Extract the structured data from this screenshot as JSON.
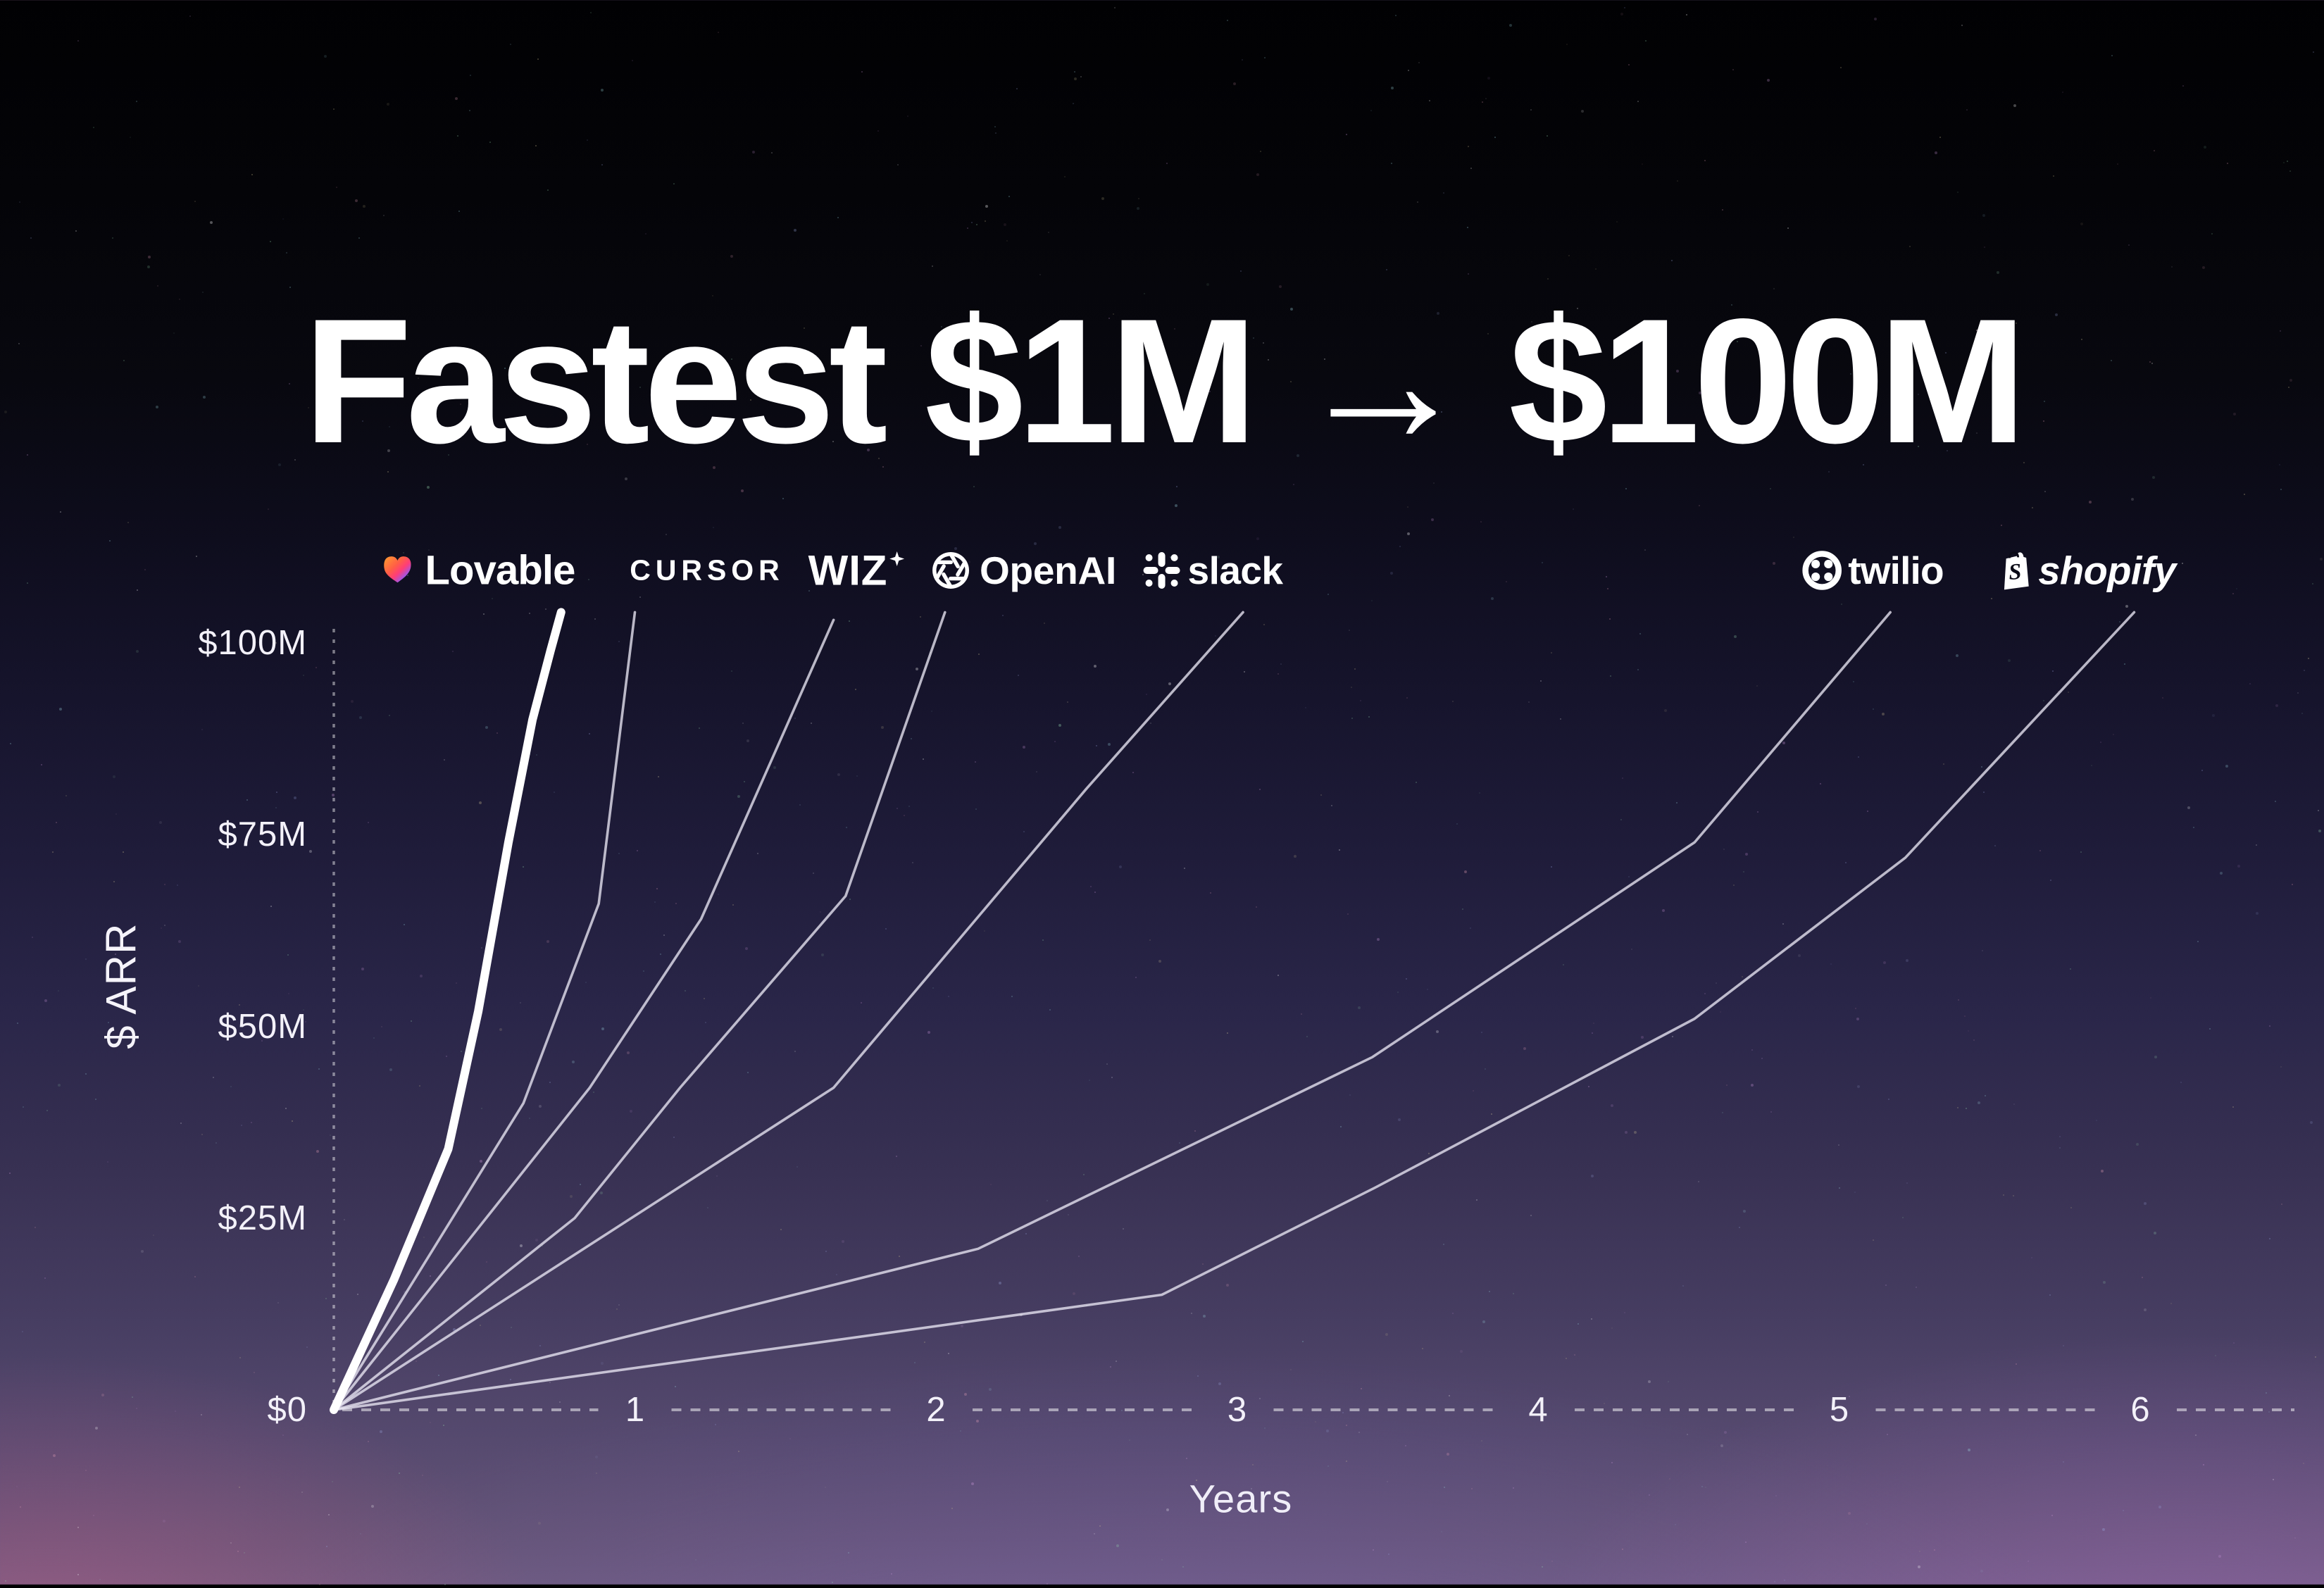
{
  "title": "Fastest $1M → $100M",
  "axis": {
    "y_title": "$ ARR",
    "x_title": "Years",
    "y_tick_labels": [
      "$0",
      "$25M",
      "$50M",
      "$75M",
      "$100M"
    ],
    "x_tick_labels": [
      "1",
      "2",
      "3",
      "4",
      "5",
      "6"
    ]
  },
  "logos": [
    {
      "name": "lovable",
      "label": "Lovable"
    },
    {
      "name": "cursor",
      "label": "CURSOR"
    },
    {
      "name": "wiz",
      "label": "WIZ"
    },
    {
      "name": "openai",
      "label": "OpenAI"
    },
    {
      "name": "slack",
      "label": "slack"
    },
    {
      "name": "twilio",
      "label": "twilio"
    },
    {
      "name": "shopify",
      "label": "shopify"
    }
  ],
  "colors": {
    "background_top": "#010103",
    "background_bottom": "#6b5a7c",
    "glow_bottom_left": "#cd5c8c",
    "glow_bottom_right": "#a86ac4",
    "emphasis_line": "#ffffff",
    "secondary_line": "#e9e7f4",
    "lovable_gradient": [
      "#ff9d2e",
      "#ff5f45",
      "#ff3d77",
      "#8a5bff",
      "#5b7bff"
    ]
  },
  "chart_data": {
    "type": "line",
    "title": "Fastest $1M → $100M",
    "xlabel": "Years",
    "ylabel": "$ ARR ($M)",
    "xlim": [
      0,
      6.6
    ],
    "ylim": [
      0,
      108
    ],
    "grid": false,
    "legend_position": "logos above each line's endpoint",
    "x_ticks": [
      1,
      2,
      3,
      4,
      5,
      6
    ],
    "y_ticks": [
      {
        "label": "$0",
        "value": 0
      },
      {
        "label": "$25M",
        "value": 25
      },
      {
        "label": "$50M",
        "value": 50
      },
      {
        "label": "$75M",
        "value": 75
      },
      {
        "label": "$100M",
        "value": 100
      }
    ],
    "series": [
      {
        "name": "Cursor",
        "emphasis": false,
        "points": [
          [
            0,
            0
          ],
          [
            0.63,
            40
          ],
          [
            0.88,
            66
          ],
          [
            1.0,
            104
          ]
        ]
      },
      {
        "name": "Wiz",
        "emphasis": false,
        "points": [
          [
            0,
            0
          ],
          [
            0.85,
            42
          ],
          [
            1.22,
            64
          ],
          [
            1.66,
            103
          ]
        ]
      },
      {
        "name": "OpenAI",
        "emphasis": false,
        "points": [
          [
            0,
            0
          ],
          [
            0.8,
            25
          ],
          [
            1.15,
            42
          ],
          [
            1.7,
            67
          ],
          [
            2.03,
            104
          ]
        ]
      },
      {
        "name": "Slack",
        "emphasis": false,
        "points": [
          [
            0,
            0
          ],
          [
            1.66,
            42
          ],
          [
            2.5,
            81
          ],
          [
            3.02,
            104
          ]
        ]
      },
      {
        "name": "Twilio",
        "emphasis": false,
        "points": [
          [
            0,
            0
          ],
          [
            2.14,
            21
          ],
          [
            3.45,
            46
          ],
          [
            4.52,
            74
          ],
          [
            5.17,
            104
          ]
        ]
      },
      {
        "name": "Shopify",
        "emphasis": false,
        "points": [
          [
            0,
            0
          ],
          [
            2.75,
            15
          ],
          [
            3.46,
            29
          ],
          [
            4.52,
            51
          ],
          [
            5.22,
            72
          ],
          [
            5.98,
            104
          ]
        ]
      },
      {
        "name": "Lovable",
        "emphasis": true,
        "points": [
          [
            0,
            0
          ],
          [
            0.2,
            17
          ],
          [
            0.38,
            34
          ],
          [
            0.48,
            52
          ],
          [
            0.58,
            74
          ],
          [
            0.66,
            90
          ],
          [
            0.72,
            99
          ],
          [
            0.755,
            104
          ]
        ]
      }
    ]
  }
}
